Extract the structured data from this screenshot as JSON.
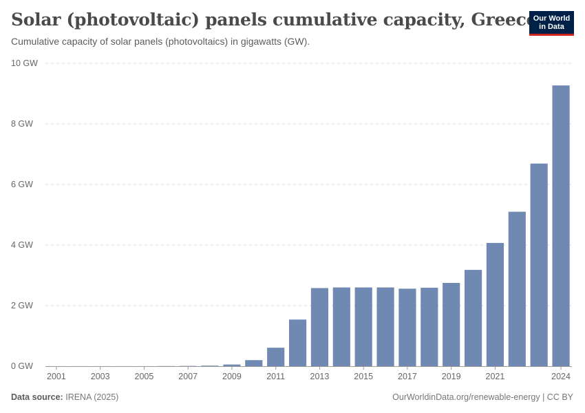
{
  "header": {
    "title": "Solar (photovoltaic) panels cumulative capacity, Greece",
    "subtitle": "Cumulative capacity of solar panels (photovoltaics) in gigawatts (GW).",
    "logo_line1": "Our World",
    "logo_line2": "in Data"
  },
  "footer": {
    "source_label": "Data source:",
    "source_value": "IRENA (2025)",
    "link": "OurWorldinData.org/renewable-energy | CC BY"
  },
  "colors": {
    "bar": "#6f89b3",
    "grid": "#dddddd",
    "axis": "#999999"
  },
  "chart_data": {
    "type": "bar",
    "title": "Solar (photovoltaic) panels cumulative capacity, Greece",
    "ylabel": "GW",
    "ylim": [
      0,
      10
    ],
    "yticks": [
      0,
      2,
      4,
      6,
      8,
      10
    ],
    "ytick_labels": [
      "0 GW",
      "2 GW",
      "4 GW",
      "6 GW",
      "8 GW",
      "10 GW"
    ],
    "xtick_labels": [
      "2001",
      "2003",
      "2005",
      "2007",
      "2009",
      "2011",
      "2013",
      "2015",
      "2017",
      "2019",
      "2021",
      "2024"
    ],
    "categories": [
      "2001",
      "2002",
      "2003",
      "2004",
      "2005",
      "2006",
      "2007",
      "2008",
      "2009",
      "2010",
      "2011",
      "2012",
      "2013",
      "2014",
      "2015",
      "2016",
      "2017",
      "2018",
      "2019",
      "2020",
      "2021",
      "2022",
      "2023",
      "2024"
    ],
    "values": [
      0.001,
      0.001,
      0.001,
      0.001,
      0.001,
      0.005,
      0.009,
      0.018,
      0.055,
      0.2,
      0.61,
      1.54,
      2.58,
      2.6,
      2.6,
      2.6,
      2.56,
      2.59,
      2.75,
      3.18,
      4.07,
      5.1,
      6.69,
      9.27
    ]
  }
}
